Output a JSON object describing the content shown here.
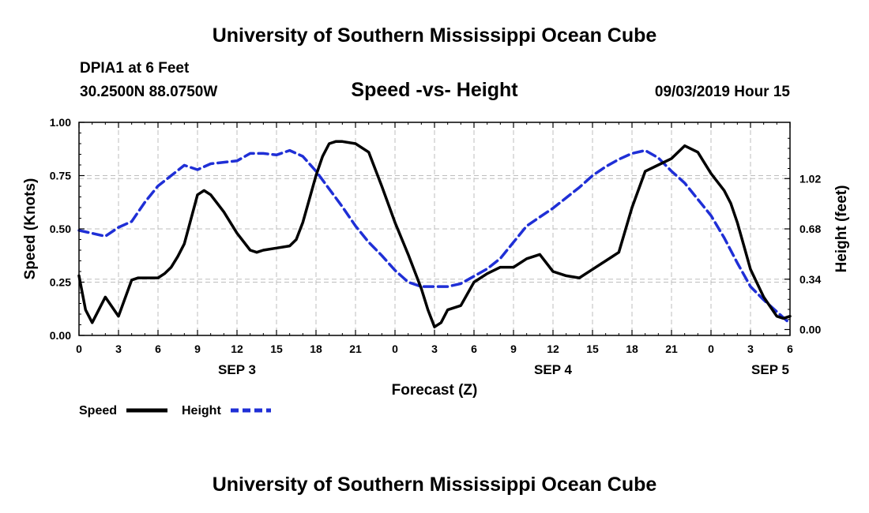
{
  "header": {
    "title": "University of Southern Mississippi Ocean Cube",
    "station": "DPIA1 at 6 Feet",
    "coords": "30.2500N 88.0750W",
    "subtitle": "Speed -vs- Height",
    "datetime": "09/03/2019 Hour 15"
  },
  "footer": {
    "title": "University of Southern Mississippi Ocean Cube"
  },
  "chart_data": {
    "type": "line",
    "title": "Speed -vs- Height",
    "xlabel": "Forecast (Z)",
    "ylabel": "Speed (Knots)",
    "y2label": "Height (feet)",
    "xlim": [
      0,
      54
    ],
    "ylim": [
      0,
      1.0
    ],
    "y2lim": [
      -0.04,
      1.4
    ],
    "grid": true,
    "x_ticks": [
      0,
      3,
      6,
      9,
      12,
      15,
      18,
      21,
      24,
      27,
      30,
      33,
      36,
      39,
      42,
      45,
      48,
      51,
      54
    ],
    "x_tick_labels": [
      "0",
      "3",
      "6",
      "9",
      "12",
      "15",
      "18",
      "21",
      "0",
      "3",
      "6",
      "9",
      "12",
      "15",
      "18",
      "21",
      "0",
      "3",
      "6"
    ],
    "y_ticks": [
      0,
      0.25,
      0.5,
      0.75,
      1.0
    ],
    "y_tick_labels": [
      "0.00",
      "0.25",
      "0.50",
      "0.75",
      "1.00"
    ],
    "y2_ticks": [
      0,
      0.34,
      0.68,
      1.02
    ],
    "y2_tick_labels": [
      "0.00",
      "0.34",
      "0.68",
      "1.02"
    ],
    "date_labels": [
      {
        "x": 12,
        "label": "SEP 3"
      },
      {
        "x": 36,
        "label": "SEP 4"
      },
      {
        "x": 52.5,
        "label": "SEP 5"
      }
    ],
    "series": [
      {
        "name": "Speed",
        "axis": "left",
        "color": "#000000",
        "dash": "solid",
        "x": [
          0,
          0.5,
          1,
          2,
          3,
          4,
          4.5,
          5,
          6,
          6.5,
          7,
          7.5,
          8,
          9,
          9.5,
          10,
          11,
          12,
          13,
          13.5,
          14,
          15,
          16,
          16.5,
          17,
          18,
          18.5,
          19,
          19.5,
          20,
          21,
          22,
          23,
          24,
          25,
          26,
          26.5,
          27,
          27.5,
          28,
          29,
          30,
          31,
          32,
          33,
          34,
          35,
          36,
          37,
          38,
          39,
          40,
          40.5,
          41,
          42,
          43,
          44,
          45,
          46,
          47,
          48,
          49,
          49.5,
          50,
          50.5,
          51,
          52,
          53,
          53.5,
          54
        ],
        "values": [
          0.28,
          0.12,
          0.06,
          0.18,
          0.09,
          0.26,
          0.27,
          0.27,
          0.27,
          0.29,
          0.32,
          0.37,
          0.43,
          0.66,
          0.68,
          0.66,
          0.58,
          0.48,
          0.4,
          0.39,
          0.4,
          0.41,
          0.42,
          0.45,
          0.53,
          0.75,
          0.84,
          0.9,
          0.91,
          0.91,
          0.9,
          0.86,
          0.7,
          0.53,
          0.38,
          0.22,
          0.12,
          0.04,
          0.06,
          0.12,
          0.14,
          0.25,
          0.29,
          0.32,
          0.32,
          0.36,
          0.38,
          0.3,
          0.28,
          0.27,
          0.31,
          0.35,
          0.37,
          0.39,
          0.6,
          0.77,
          0.8,
          0.83,
          0.89,
          0.86,
          0.76,
          0.68,
          0.62,
          0.53,
          0.42,
          0.31,
          0.18,
          0.09,
          0.08,
          0.09
        ]
      },
      {
        "name": "Height",
        "axis": "right",
        "color": "#1f2fd6",
        "dash": "dashed",
        "x": [
          0,
          1,
          2,
          3,
          4,
          5,
          6,
          7,
          8,
          9,
          10,
          11,
          12,
          13,
          14,
          15,
          16,
          17,
          18,
          19,
          20,
          21,
          22,
          23,
          24,
          25,
          26,
          27,
          28,
          29,
          30,
          31,
          32,
          33,
          34,
          35,
          36,
          37,
          38,
          39,
          40,
          41,
          42,
          43,
          44,
          45,
          46,
          47,
          48,
          49,
          50,
          51,
          52,
          53,
          54
        ],
        "values": [
          0.67,
          0.65,
          0.63,
          0.69,
          0.73,
          0.86,
          0.97,
          1.04,
          1.11,
          1.08,
          1.12,
          1.13,
          1.14,
          1.19,
          1.19,
          1.18,
          1.21,
          1.17,
          1.07,
          0.95,
          0.83,
          0.7,
          0.59,
          0.5,
          0.4,
          0.32,
          0.29,
          0.29,
          0.29,
          0.31,
          0.36,
          0.41,
          0.48,
          0.59,
          0.7,
          0.76,
          0.82,
          0.89,
          0.96,
          1.04,
          1.1,
          1.15,
          1.19,
          1.21,
          1.16,
          1.07,
          0.99,
          0.88,
          0.77,
          0.62,
          0.45,
          0.29,
          0.2,
          0.12,
          0.04
        ]
      }
    ],
    "legend": [
      {
        "label": "Speed",
        "series": "Speed"
      },
      {
        "label": "Height",
        "series": "Height"
      }
    ],
    "legend_position": "bottom-left"
  }
}
